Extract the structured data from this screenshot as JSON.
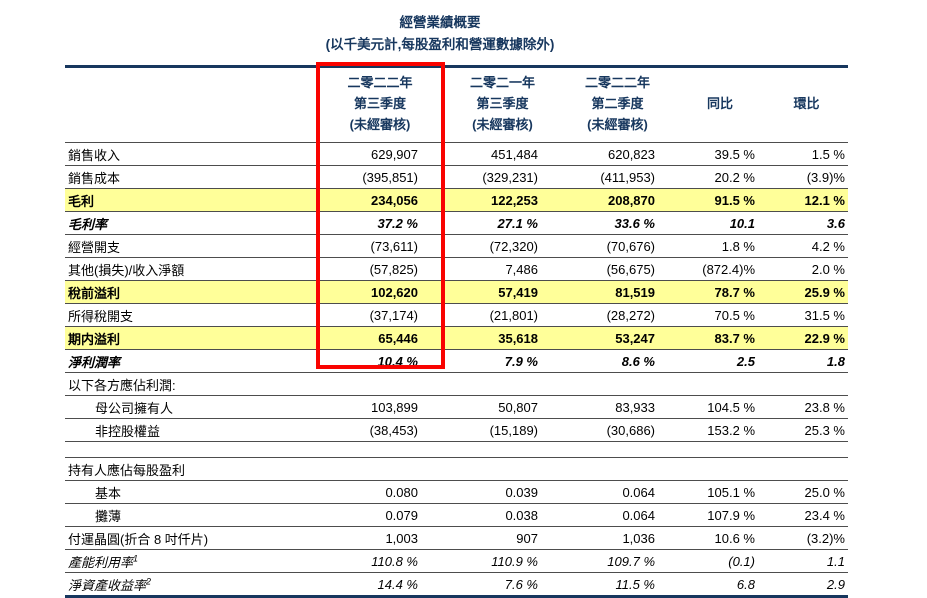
{
  "title": "經營業績概要",
  "subtitle": "(以千美元計,每股盈利和營運數據除外)",
  "colors": {
    "accent_navy": "#17375E",
    "highlight_yellow": "#FFFF99",
    "annotation_red": "#F90300"
  },
  "table": {
    "columns": [
      {
        "lines": [
          "二零二二年",
          "第三季度",
          "(未經審核)"
        ],
        "red_boxed": true
      },
      {
        "lines": [
          "二零二一年",
          "第三季度",
          "(未經審核)"
        ],
        "red_boxed": false
      },
      {
        "lines": [
          "二零二二年",
          "第二季度",
          "(未經審核)"
        ],
        "red_boxed": false
      },
      {
        "lines": [
          "同比"
        ],
        "red_boxed": false
      },
      {
        "lines": [
          "環比"
        ],
        "red_boxed": false
      }
    ],
    "rows": [
      {
        "label": "銷售收入",
        "style": "normal",
        "values": [
          "629,907",
          "451,484",
          "620,823",
          "39.5 %",
          "1.5 %"
        ]
      },
      {
        "label": "銷售成本",
        "style": "normal",
        "values": [
          "(395,851)",
          "(329,231)",
          "(411,953)",
          "20.2 %",
          "(3.9)%"
        ]
      },
      {
        "label": "毛利",
        "style": "highlight",
        "values": [
          "234,056",
          "122,253",
          "208,870",
          "91.5 %",
          "12.1 %"
        ]
      },
      {
        "label": "毛利率",
        "style": "rate",
        "values": [
          "37.2 %",
          "27.1 %",
          "33.6 %",
          "10.1",
          "3.6"
        ]
      },
      {
        "label": "經營開支",
        "style": "normal",
        "values": [
          "(73,611)",
          "(72,320)",
          "(70,676)",
          "1.8 %",
          "4.2 %"
        ]
      },
      {
        "label": "其他(損失)/收入淨額",
        "style": "normal",
        "values": [
          "(57,825)",
          "7,486",
          "(56,675)",
          "(872.4)%",
          "2.0 %"
        ]
      },
      {
        "label": "稅前溢利",
        "style": "highlight",
        "values": [
          "102,620",
          "57,419",
          "81,519",
          "78.7 %",
          "25.9 %"
        ]
      },
      {
        "label": "所得稅開支",
        "style": "normal",
        "values": [
          "(37,174)",
          "(21,801)",
          "(28,272)",
          "70.5 %",
          "31.5 %"
        ]
      },
      {
        "label": "期内溢利",
        "style": "highlight",
        "values": [
          "65,446",
          "35,618",
          "53,247",
          "83.7 %",
          "22.9 %"
        ]
      },
      {
        "label": "淨利潤率",
        "style": "rate",
        "values": [
          "10.4 %",
          "7.9 %",
          "8.6 %",
          "2.5",
          "1.8"
        ]
      },
      {
        "label": "以下各方應佔利潤:",
        "style": "normal",
        "values": [
          "",
          "",
          "",
          "",
          ""
        ]
      },
      {
        "label": "母公司擁有人",
        "style": "normal",
        "indent": true,
        "values": [
          "103,899",
          "50,807",
          "83,933",
          "104.5 %",
          "23.8 %"
        ]
      },
      {
        "label": "非控股權益",
        "style": "normal",
        "indent": true,
        "values": [
          "(38,453)",
          "(15,189)",
          "(30,686)",
          "153.2 %",
          "25.3 %"
        ]
      },
      {
        "label": "",
        "style": "blank",
        "values": [
          "",
          "",
          "",
          "",
          ""
        ]
      },
      {
        "label": "持有人應佔每股盈利",
        "style": "normal",
        "values": [
          "",
          "",
          "",
          "",
          ""
        ]
      },
      {
        "label": "基本",
        "style": "normal",
        "indent": true,
        "values": [
          "0.080",
          "0.039",
          "0.064",
          "105.1 %",
          "25.0 %"
        ]
      },
      {
        "label": "攤薄",
        "style": "normal",
        "indent": true,
        "values": [
          "0.079",
          "0.038",
          "0.064",
          "107.9 %",
          "23.4 %"
        ]
      },
      {
        "label": "付運晶圓(折合 8 吋仟片)",
        "style": "normal",
        "values": [
          "1,003",
          "907",
          "1,036",
          "10.6 %",
          "(3.2)%"
        ]
      },
      {
        "label": "產能利用率",
        "sup": "1",
        "style": "italic",
        "values": [
          "110.8 %",
          "110.9 %",
          "109.7 %",
          "(0.1)",
          "1.1"
        ]
      },
      {
        "label": "淨資產收益率",
        "sup": "2",
        "style": "italic",
        "values": [
          "14.4 %",
          "7.6 %",
          "11.5 %",
          "6.8",
          "2.9"
        ]
      }
    ]
  }
}
